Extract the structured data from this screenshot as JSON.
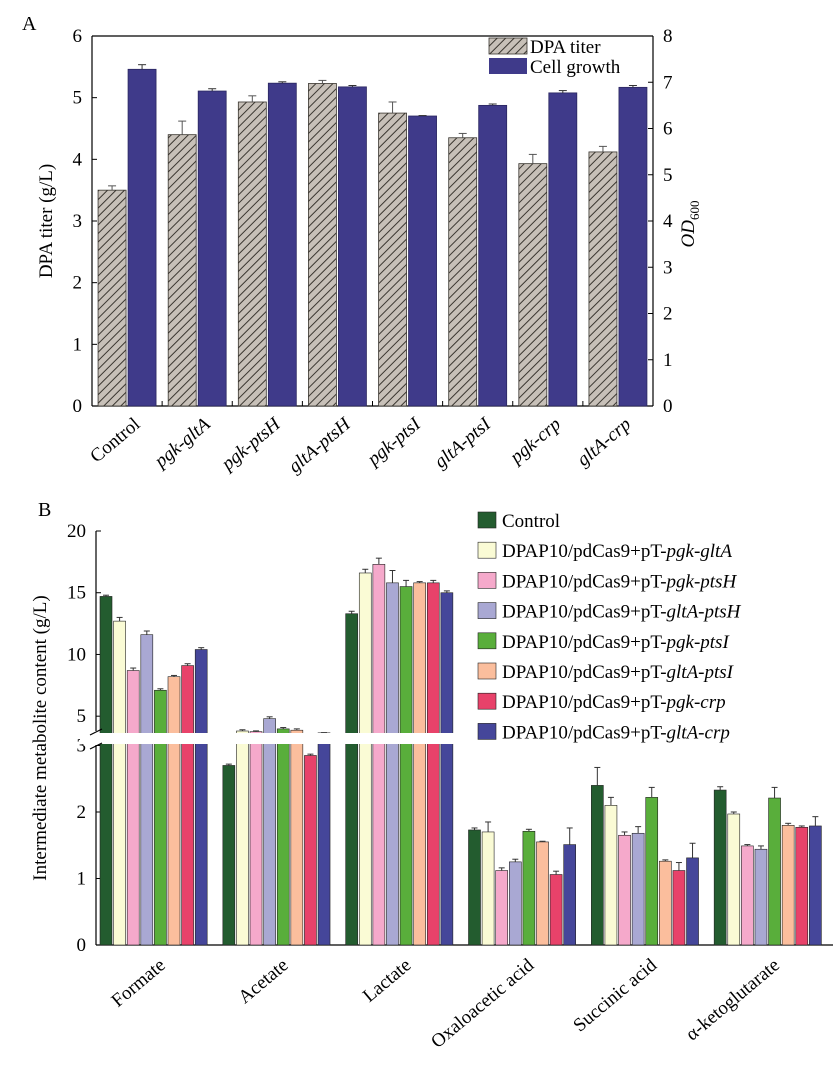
{
  "panel_a": {
    "label": "A",
    "y_label": "DPA titer (g/L)",
    "y2_label_main": "OD",
    "y2_label_sub": "600"
  },
  "panel_b": {
    "label": "B",
    "y_label": "Intermediate metabolite content (g/L)"
  },
  "colors": {
    "dpa_hatch": "#b3aba3",
    "cell_growth": "#3f3a8a",
    "control": "#235c2f",
    "pgk_gltA": "#fafbd5",
    "pgk_ptsH": "#f5a9cb",
    "gltA_ptsH": "#a9a8d3",
    "pgk_ptsI": "#59ae3b",
    "gltA_ptsI": "#fbbe9d",
    "pgk_crp": "#e8426a",
    "gltA_crp": "#45469a"
  },
  "chart_data": [
    {
      "type": "bar",
      "categories": [
        "Control",
        "pgk-gltA",
        "pgk-ptsH",
        "gltA-ptsH",
        "pgk-ptsI",
        "gltA-ptsI",
        "pgk-crp",
        "gltA-crp"
      ],
      "series": [
        {
          "name": "DPA titer",
          "axis": "left",
          "pattern": "hatch",
          "values": [
            3.5,
            4.4,
            4.93,
            5.23,
            4.75,
            4.35,
            3.93,
            4.12
          ],
          "errors": [
            0.07,
            0.22,
            0.1,
            0.05,
            0.18,
            0.07,
            0.15,
            0.09
          ]
        },
        {
          "name": "Cell growth",
          "axis": "right",
          "values": [
            7.28,
            6.81,
            6.98,
            6.9,
            6.27,
            6.5,
            6.77,
            6.89
          ],
          "errors": [
            0.1,
            0.05,
            0.03,
            0.03,
            0.01,
            0.03,
            0.05,
            0.04
          ]
        }
      ],
      "ylabel": "DPA titer (g/L)",
      "ylim": [
        0,
        6
      ],
      "yticks": [
        0,
        1,
        2,
        3,
        4,
        5,
        6
      ],
      "y2label": "OD600",
      "y2lim": [
        0,
        8
      ],
      "y2ticks": [
        0,
        1,
        2,
        3,
        4,
        5,
        6,
        7,
        8
      ],
      "legend_position": "top-right",
      "grid": false
    },
    {
      "type": "bar",
      "categories": [
        "Formate",
        "Acetate",
        "Lactate",
        "Oxaloacetic acid",
        "Succinic acid",
        "α-ketoglutarate"
      ],
      "series": [
        {
          "name": "Control",
          "values": [
            14.7,
            2.7,
            13.3,
            1.73,
            2.4,
            2.33
          ],
          "errors": [
            0.1,
            0.02,
            0.2,
            0.03,
            0.27,
            0.05
          ]
        },
        {
          "name": "DPAP10/pdCas9+pT-pgk-gltA",
          "values": [
            12.7,
            3.8,
            16.6,
            1.7,
            2.1,
            1.97
          ],
          "errors": [
            0.3,
            0.1,
            0.3,
            0.15,
            0.12,
            0.03
          ]
        },
        {
          "name": "DPAP10/pdCas9+pT-pgk-ptsH",
          "values": [
            8.7,
            3.75,
            17.3,
            1.12,
            1.65,
            1.49
          ],
          "errors": [
            0.2,
            0.06,
            0.5,
            0.04,
            0.05,
            0.02
          ]
        },
        {
          "name": "DPAP10/pdCas9+pT-gltA-ptsH",
          "values": [
            11.6,
            4.8,
            15.8,
            1.25,
            1.68,
            1.44
          ],
          "errors": [
            0.3,
            0.15,
            1.0,
            0.04,
            0.1,
            0.05
          ]
        },
        {
          "name": "DPAP10/pdCas9+pT-pgk-ptsI",
          "values": [
            7.1,
            3.25,
            15.5,
            1.71,
            2.22,
            2.21
          ],
          "errors": [
            0.12,
            0.02,
            0.5,
            0.03,
            0.15,
            0.16
          ]
        },
        {
          "name": "DPAP10/pdCas9+pT-gltA-ptsI",
          "values": [
            8.2,
            3.23,
            15.8,
            1.55,
            1.26,
            1.8
          ],
          "errors": [
            0.1,
            0.02,
            0.1,
            0.01,
            0.02,
            0.03
          ]
        },
        {
          "name": "DPAP10/pdCas9+pT-pgk-crp",
          "values": [
            9.1,
            2.85,
            15.8,
            1.06,
            1.12,
            1.77
          ],
          "errors": [
            0.15,
            0.02,
            0.2,
            0.05,
            0.12,
            0.02
          ]
        },
        {
          "name": "DPAP10/pdCas9+pT-gltA-crp",
          "values": [
            10.4,
            3.65,
            15.0,
            1.51,
            1.31,
            1.79
          ],
          "errors": [
            0.15,
            0.02,
            0.15,
            0.25,
            0.22,
            0.14
          ]
        }
      ],
      "ylabel": "Intermediate metabolite content (g/L)",
      "y_axis_break": [
        3.4,
        3.8
      ],
      "yticks_lower": [
        0,
        1,
        2,
        3
      ],
      "yticks_upper": [
        5,
        10,
        15,
        20
      ],
      "ylim": [
        0,
        20
      ],
      "legend_position": "top-right",
      "grid": false
    }
  ]
}
